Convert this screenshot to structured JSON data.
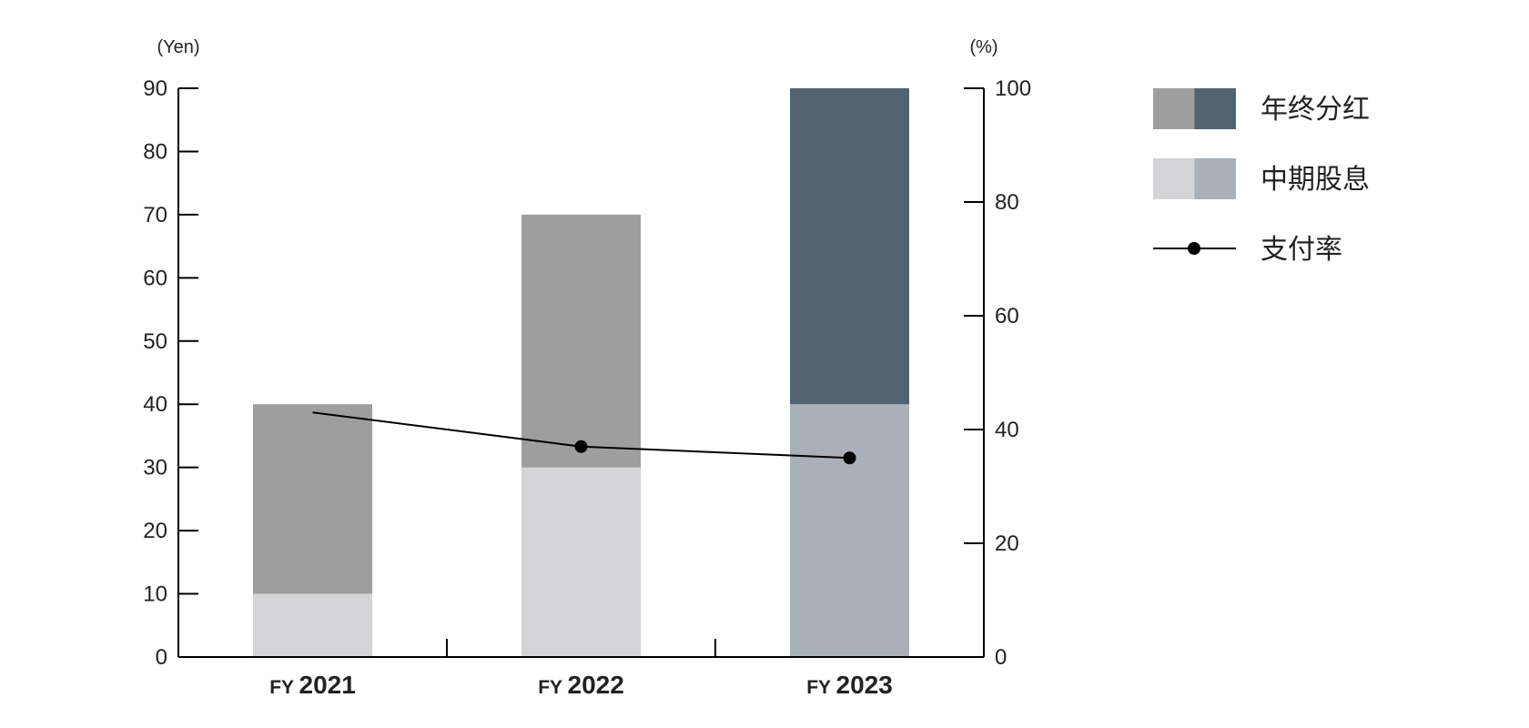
{
  "chart_data": {
    "type": "bar",
    "categories": [
      "2021",
      "2022",
      "2023"
    ],
    "category_prefix": "FY",
    "series": [
      {
        "name": "中期股息",
        "values": [
          10,
          30,
          40
        ]
      },
      {
        "name": "年终分红",
        "values": [
          30,
          40,
          50
        ]
      }
    ],
    "line_series": {
      "name": "支付率",
      "values": [
        43,
        37,
        35
      ],
      "axis": "right"
    },
    "y_left": {
      "unit": "(Yen)",
      "ylim": [
        0,
        90
      ],
      "ticks": [
        0,
        10,
        20,
        30,
        40,
        50,
        60,
        70,
        80,
        90
      ]
    },
    "y_right": {
      "unit": "(%)",
      "ylim": [
        0,
        100
      ],
      "ticks": [
        0,
        20,
        40,
        60,
        80,
        100
      ]
    },
    "grid": false,
    "legend": {
      "placement": "right",
      "items": [
        {
          "label": "年终分红",
          "swatches": [
            "#9e9e9e",
            "#536471"
          ]
        },
        {
          "label": "中期股息",
          "swatches": [
            "#d4d4d6",
            "#a9b0b8"
          ]
        },
        {
          "label": "支付率",
          "kind": "line-marker"
        }
      ]
    },
    "colors": {
      "final_default": "#9e9e9e",
      "interim_default": "#d4d4d6",
      "final_latest": "#536471",
      "interim_latest": "#a9b0b8",
      "line": "#000000",
      "axis": "#000000"
    }
  }
}
